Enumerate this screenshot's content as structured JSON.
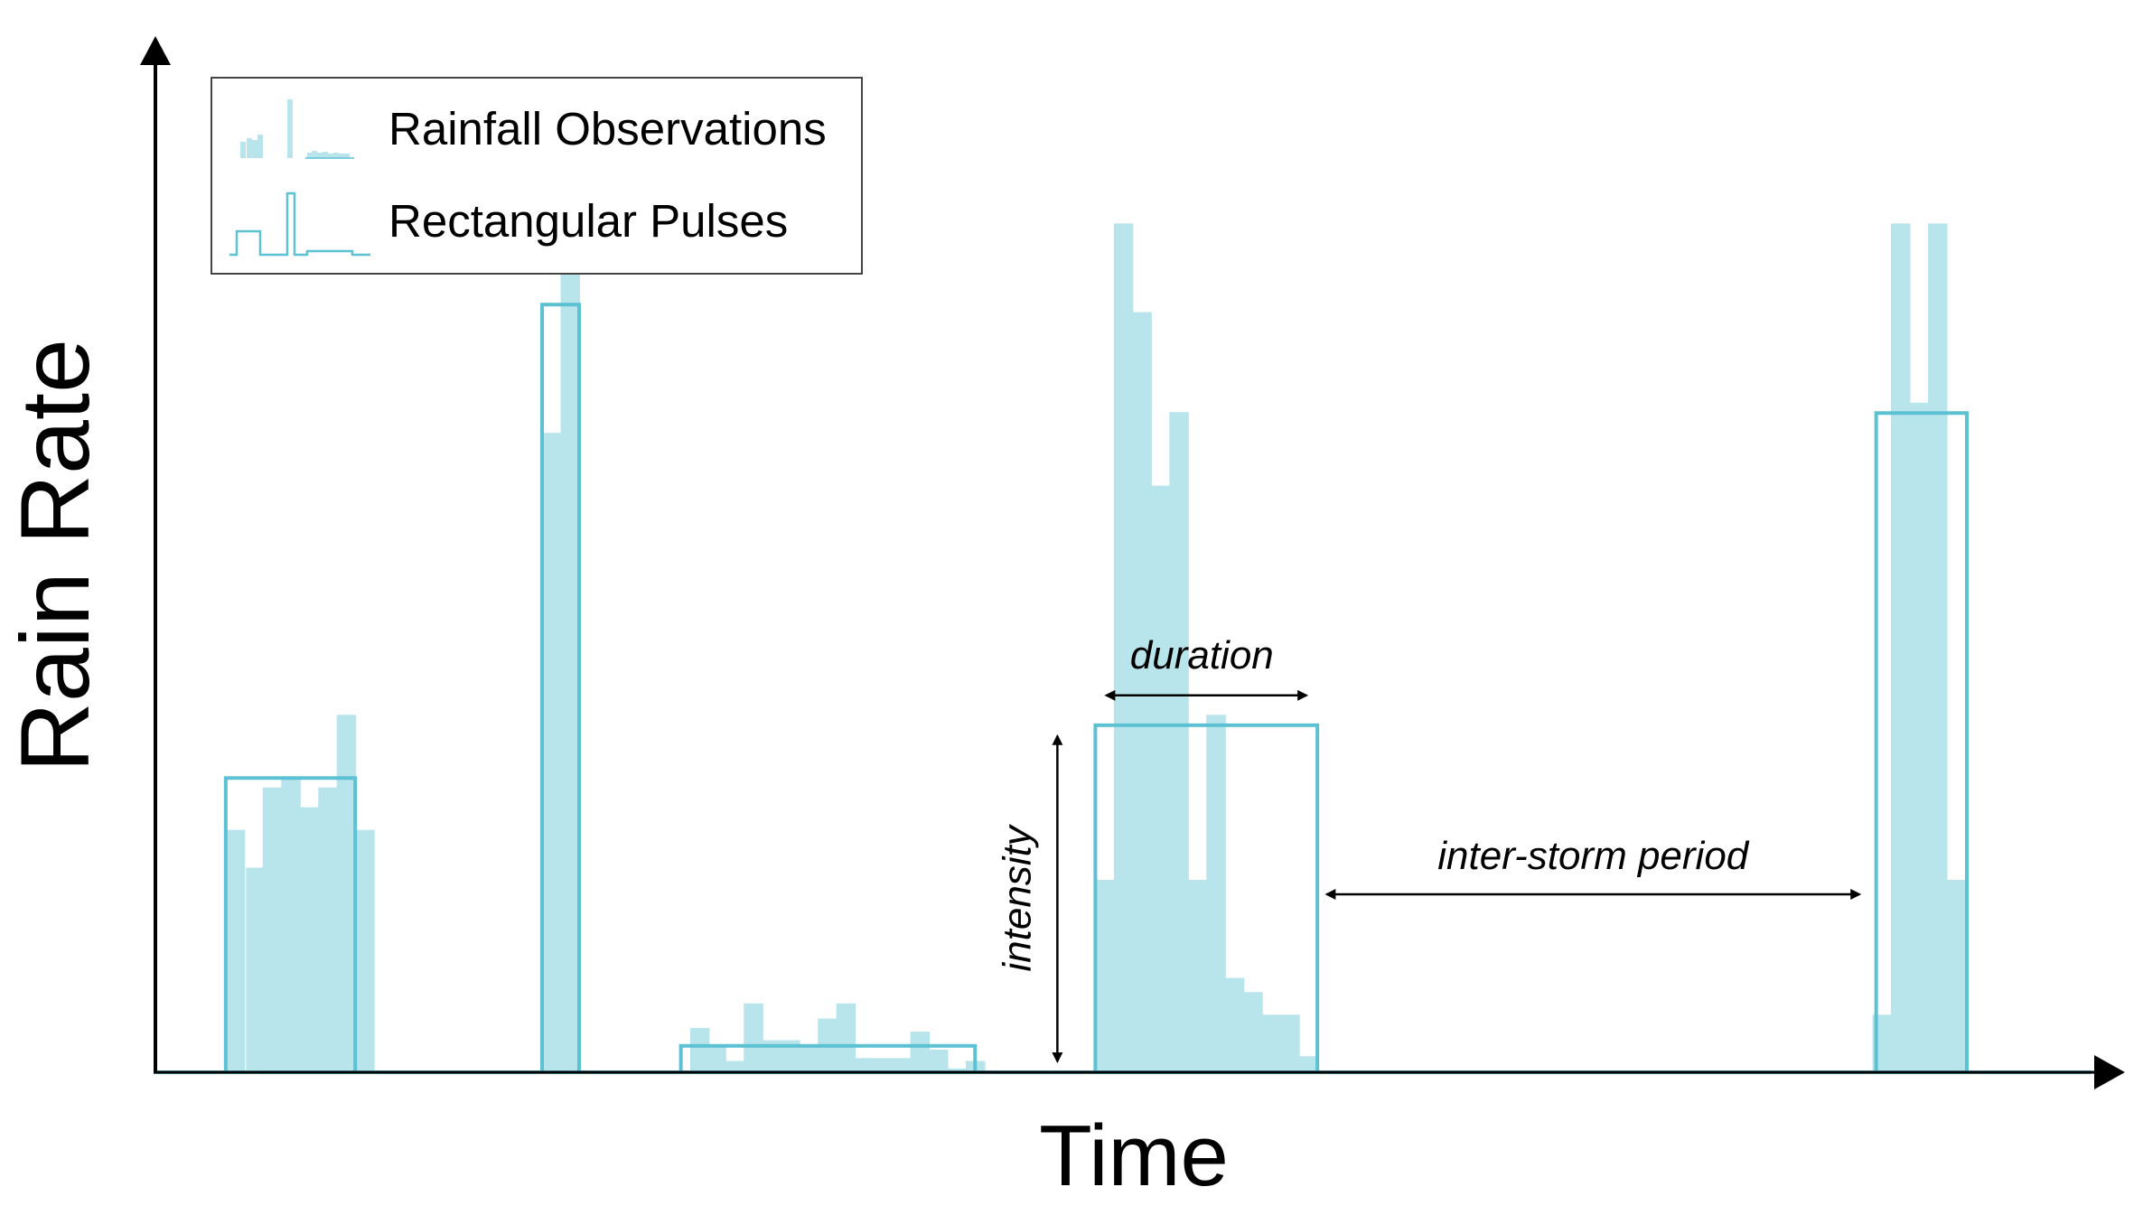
{
  "colors": {
    "observation_fill": "#b8e4ec",
    "pulse_stroke": "#5bc1d3",
    "axis": "#000000",
    "baseline": "#5bc1d3"
  },
  "axes": {
    "xlabel": "Time",
    "ylabel": "Rain Rate"
  },
  "legend": {
    "items": [
      {
        "label": "Rainfall Observations",
        "icon": "rainfall-observations-icon"
      },
      {
        "label": "Rectangular Pulses",
        "icon": "rectangular-pulses-icon"
      }
    ]
  },
  "annotations": {
    "duration": "duration",
    "intensity": "intensity",
    "inter_storm": "inter-storm period"
  },
  "chart_data": {
    "type": "bar",
    "xlabel": "Time",
    "ylabel": "Rain Rate",
    "note": "",
    "time_range": [
      0,
      100
    ],
    "rate_range": [
      0,
      100
    ],
    "observations": [
      [
        3.8,
        25.7
      ],
      [
        4.9,
        21.7
      ],
      [
        5.8,
        30.2
      ],
      [
        6.8,
        31.2
      ],
      [
        7.8,
        28.1
      ],
      [
        8.8,
        30.2
      ],
      [
        9.8,
        37.9
      ],
      [
        10.8,
        25.7
      ],
      [
        20.9,
        67.8
      ],
      [
        21.9,
        87.4
      ],
      [
        28.9,
        4.7
      ],
      [
        29.8,
        2.7
      ],
      [
        30.8,
        1.2
      ],
      [
        31.8,
        7.3
      ],
      [
        32.8,
        3.4
      ],
      [
        33.8,
        3.4
      ],
      [
        34.8,
        2.7
      ],
      [
        35.8,
        5.7
      ],
      [
        36.8,
        7.3
      ],
      [
        37.8,
        1.5
      ],
      [
        38.8,
        1.5
      ],
      [
        39.8,
        1.5
      ],
      [
        40.8,
        4.3
      ],
      [
        41.8,
        2.4
      ],
      [
        42.8,
        0.4
      ],
      [
        43.8,
        1.2
      ],
      [
        50.8,
        20.4
      ],
      [
        51.8,
        90.0
      ],
      [
        52.8,
        80.6
      ],
      [
        53.8,
        62.2
      ],
      [
        54.8,
        70.0
      ],
      [
        55.8,
        20.4
      ],
      [
        56.8,
        37.9
      ],
      [
        57.8,
        10.0
      ],
      [
        58.8,
        8.5
      ],
      [
        59.8,
        6.1
      ],
      [
        60.8,
        6.1
      ],
      [
        61.8,
        1.7
      ],
      [
        92.8,
        6.1
      ],
      [
        93.8,
        90.0
      ],
      [
        94.8,
        71.0
      ],
      [
        95.8,
        90.0
      ],
      [
        96.8,
        20.4
      ]
    ],
    "pulses": [
      {
        "start": 3.8,
        "end": 10.8,
        "intensity": 31.2
      },
      {
        "start": 20.9,
        "end": 22.9,
        "intensity": 81.4
      },
      {
        "start": 28.4,
        "end": 44.3,
        "intensity": 2.8
      },
      {
        "start": 50.8,
        "end": 62.8,
        "intensity": 36.8
      },
      {
        "start": 93.0,
        "end": 97.9,
        "intensity": 69.9
      }
    ],
    "annotated_pulse": 3,
    "inter_storm_span": [
      63.3,
      92.1
    ]
  }
}
